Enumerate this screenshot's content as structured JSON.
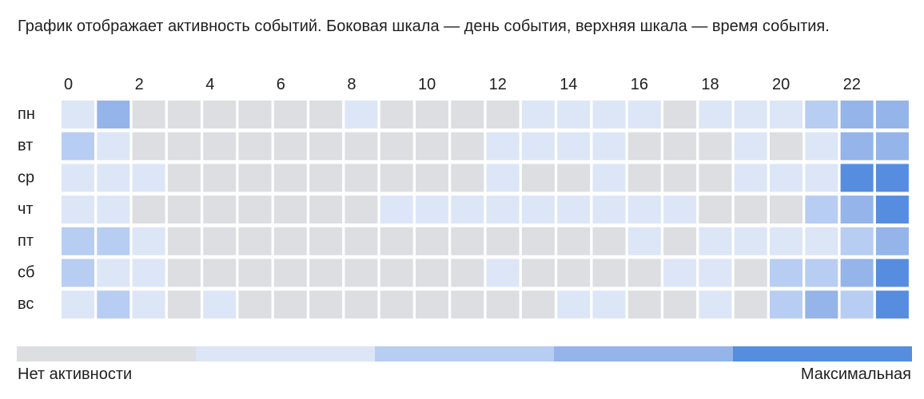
{
  "description": "График отображает активность событий. Боковая шкала — день события, верхняя шкала — время события.",
  "chart_data": {
    "type": "heatmap",
    "x_labels": [
      "0",
      "",
      "2",
      "",
      "4",
      "",
      "6",
      "",
      "8",
      "",
      "10",
      "",
      "12",
      "",
      "14",
      "",
      "16",
      "",
      "18",
      "",
      "20",
      "",
      "22",
      ""
    ],
    "y_labels": [
      "пн",
      "вт",
      "ср",
      "чт",
      "пт",
      "сб",
      "вс"
    ],
    "values": [
      [
        1,
        3,
        0,
        0,
        0,
        0,
        0,
        0,
        1,
        0,
        0,
        0,
        0,
        1,
        1,
        1,
        1,
        0,
        1,
        1,
        1,
        2,
        3,
        3
      ],
      [
        2,
        1,
        0,
        0,
        0,
        0,
        0,
        0,
        0,
        0,
        0,
        0,
        1,
        1,
        1,
        1,
        0,
        0,
        0,
        1,
        0,
        1,
        3,
        3
      ],
      [
        1,
        1,
        1,
        0,
        0,
        0,
        0,
        0,
        0,
        0,
        0,
        0,
        1,
        0,
        0,
        1,
        0,
        0,
        0,
        1,
        1,
        1,
        4,
        4
      ],
      [
        1,
        1,
        0,
        0,
        0,
        0,
        0,
        0,
        0,
        1,
        1,
        1,
        1,
        1,
        1,
        1,
        1,
        1,
        0,
        0,
        0,
        2,
        3,
        4
      ],
      [
        2,
        2,
        1,
        0,
        0,
        0,
        0,
        0,
        0,
        0,
        0,
        0,
        0,
        0,
        0,
        0,
        1,
        0,
        1,
        1,
        1,
        1,
        2,
        3
      ],
      [
        2,
        1,
        1,
        0,
        0,
        0,
        0,
        0,
        0,
        0,
        0,
        0,
        1,
        0,
        0,
        0,
        0,
        1,
        1,
        0,
        2,
        2,
        3,
        4
      ],
      [
        1,
        2,
        1,
        0,
        1,
        0,
        0,
        0,
        0,
        0,
        0,
        0,
        0,
        0,
        1,
        1,
        0,
        0,
        1,
        0,
        2,
        3,
        2,
        4
      ]
    ],
    "scale": {
      "min": 0,
      "max": 4
    },
    "legend": {
      "colors": [
        "#dcdee2",
        "#dce6f7",
        "#b8cdf2",
        "#94b4ea",
        "#568ddf"
      ],
      "min_label": "Нет активности",
      "max_label": "Максимальная"
    }
  }
}
